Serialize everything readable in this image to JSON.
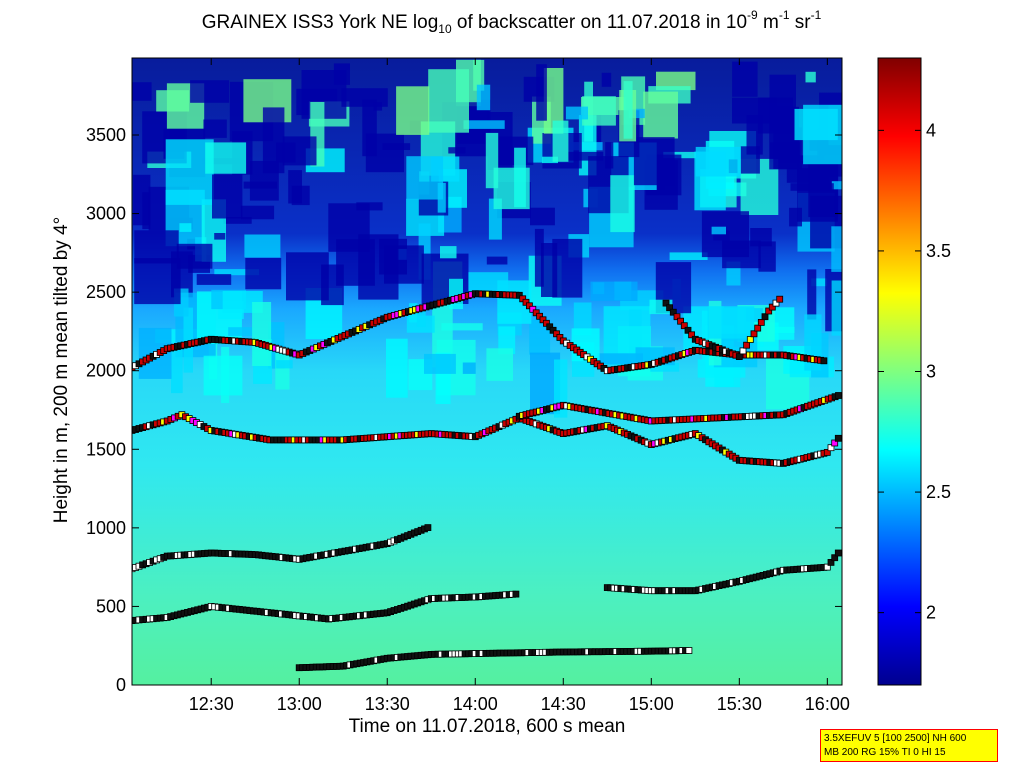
{
  "title": {
    "main": "GRAINEX ISS3 York NE log",
    "sub10": "10",
    "mid": " of backscatter on 11.07.2018 in 10",
    "exp1": "-9",
    "unit_m": " m",
    "exp2": "-1",
    "unit_sr": " sr",
    "exp3": "-1"
  },
  "chart_data": {
    "type": "heatmap",
    "xlabel": "Time on 11.07.2018, 600 s mean",
    "ylabel": "Height in m, 200 m mean tilted by 4°",
    "xlim": [
      "12:03",
      "16:05"
    ],
    "ylim": [
      0,
      3990
    ],
    "x_ticks": [
      "12:30",
      "13:00",
      "13:30",
      "14:00",
      "14:30",
      "15:00",
      "15:30",
      "16:00"
    ],
    "y_ticks": [
      0,
      500,
      1000,
      1500,
      2000,
      2500,
      3000,
      3500
    ],
    "colorbar": {
      "range": [
        1.7,
        4.3
      ],
      "ticks": [
        2,
        2.5,
        3,
        3.5,
        4
      ],
      "colormap": "jet"
    },
    "field_description_levels": [
      {
        "height_range": [
          0,
          500
        ],
        "value": 2.75
      },
      {
        "height_range": [
          500,
          1500
        ],
        "value": 2.65
      },
      {
        "height_range": [
          1500,
          2100
        ],
        "value": 2.5
      },
      {
        "height_range": [
          2100,
          2600
        ],
        "value": 2.25
      },
      {
        "height_range": [
          2600,
          3990
        ],
        "value": 1.95
      }
    ],
    "layer_markers": [
      {
        "name": "layer-1",
        "points": [
          [
            "13:00",
            110
          ],
          [
            "13:15",
            120
          ],
          [
            "13:30",
            170
          ],
          [
            "13:45",
            195
          ],
          [
            "14:00",
            200
          ],
          [
            "14:30",
            210
          ],
          [
            "15:00",
            215
          ],
          [
            "15:14",
            220
          ]
        ]
      },
      {
        "name": "layer-2",
        "points": [
          [
            "12:03",
            410
          ],
          [
            "12:15",
            430
          ],
          [
            "12:30",
            500
          ],
          [
            "13:00",
            440
          ],
          [
            "13:10",
            420
          ],
          [
            "13:30",
            460
          ],
          [
            "13:45",
            550
          ],
          [
            "14:00",
            560
          ],
          [
            "14:15",
            580
          ]
        ]
      },
      {
        "name": "layer-3",
        "points": [
          [
            "14:45",
            620
          ],
          [
            "15:00",
            600
          ],
          [
            "15:15",
            600
          ],
          [
            "15:30",
            660
          ],
          [
            "15:45",
            730
          ],
          [
            "16:00",
            750
          ],
          [
            "16:05",
            870
          ]
        ]
      },
      {
        "name": "layer-4",
        "points": [
          [
            "12:03",
            740
          ],
          [
            "12:15",
            820
          ],
          [
            "12:30",
            840
          ],
          [
            "12:45",
            830
          ],
          [
            "13:00",
            800
          ],
          [
            "13:30",
            900
          ],
          [
            "13:45",
            1010
          ]
        ]
      },
      {
        "name": "layer-5",
        "points": [
          [
            "12:03",
            1620
          ],
          [
            "12:15",
            1680
          ],
          [
            "12:20",
            1720
          ],
          [
            "12:30",
            1620
          ],
          [
            "12:50",
            1560
          ],
          [
            "13:15",
            1560
          ],
          [
            "13:30",
            1580
          ],
          [
            "13:45",
            1600
          ],
          [
            "14:00",
            1580
          ],
          [
            "14:15",
            1700
          ],
          [
            "14:30",
            1600
          ],
          [
            "14:45",
            1650
          ],
          [
            "15:00",
            1530
          ],
          [
            "15:15",
            1600
          ],
          [
            "15:30",
            1430
          ],
          [
            "15:45",
            1410
          ],
          [
            "16:00",
            1480
          ],
          [
            "16:05",
            1600
          ]
        ]
      },
      {
        "name": "layer-6",
        "points": [
          [
            "12:03",
            2020
          ],
          [
            "12:15",
            2140
          ],
          [
            "12:30",
            2200
          ],
          [
            "12:45",
            2180
          ],
          [
            "13:00",
            2100
          ],
          [
            "13:30",
            2340
          ],
          [
            "14:00",
            2490
          ],
          [
            "14:15",
            2480
          ],
          [
            "14:30",
            2190
          ],
          [
            "14:45",
            2000
          ],
          [
            "15:00",
            2040
          ],
          [
            "15:15",
            2130
          ],
          [
            "15:30",
            2100
          ],
          [
            "15:45",
            2100
          ],
          [
            "16:00",
            2060
          ]
        ]
      },
      {
        "name": "layer-7",
        "points": [
          [
            "14:15",
            1710
          ],
          [
            "14:30",
            1780
          ],
          [
            "15:00",
            1680
          ],
          [
            "15:45",
            1720
          ],
          [
            "16:05",
            1850
          ]
        ]
      },
      {
        "name": "layer-8",
        "points": [
          [
            "15:05",
            2430
          ],
          [
            "15:15",
            2200
          ],
          [
            "15:30",
            2090
          ],
          [
            "15:40",
            2380
          ],
          [
            "15:45",
            2480
          ]
        ]
      }
    ]
  },
  "info_box": {
    "line1": "3.5XEFUV 5 [100 2500] NH 600",
    "line2": "MB 200 RG 15% TI 0 HI 15"
  }
}
